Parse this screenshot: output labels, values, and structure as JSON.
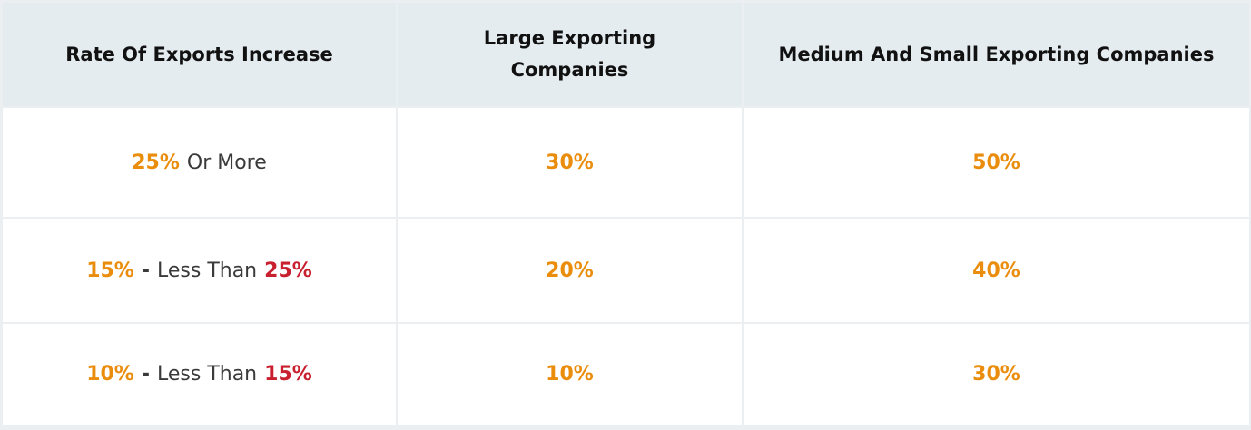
{
  "table": {
    "header": [
      "Rate Of Exports Increase",
      "Large Exporting Companies",
      "Medium And Small Exporting Companies"
    ],
    "rows": [
      {
        "range": [
          {
            "text": "25%",
            "color": "#ea8d0c"
          },
          {
            "text": "Or More",
            "color": "#3a3a3a"
          }
        ],
        "large": "30%",
        "small": "50%"
      },
      {
        "range": [
          {
            "text": "15%",
            "color": "#ea8d0c"
          },
          {
            "text": "-",
            "color": "#3a3a3a"
          },
          {
            "text": "Less Than",
            "color": "#3a3a3a"
          },
          {
            "text": "25%",
            "color": "#c8202f"
          }
        ],
        "large": "20%",
        "small": "40%"
      },
      {
        "range": [
          {
            "text": "10%",
            "color": "#ea8d0c"
          },
          {
            "text": "-",
            "color": "#3a3a3a"
          },
          {
            "text": "Less Than",
            "color": "#3a3a3a"
          },
          {
            "text": "15%",
            "color": "#c8202f"
          }
        ],
        "large": "10%",
        "small": "30%"
      }
    ],
    "value_color": "#ea8d0c"
  }
}
